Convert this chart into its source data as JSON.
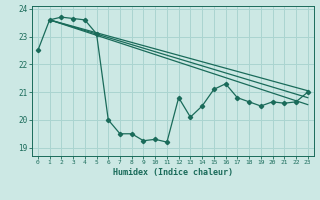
{
  "xlabel": "Humidex (Indice chaleur)",
  "background_color": "#cce8e4",
  "grid_color": "#aad4d0",
  "line_color": "#1a6b5a",
  "xlim": [
    -0.5,
    23.5
  ],
  "ylim": [
    18.7,
    24.1
  ],
  "yticks": [
    19,
    20,
    21,
    22,
    23,
    24
  ],
  "xticks": [
    0,
    1,
    2,
    3,
    4,
    5,
    6,
    7,
    8,
    9,
    10,
    11,
    12,
    13,
    14,
    15,
    16,
    17,
    18,
    19,
    20,
    21,
    22,
    23
  ],
  "main_line": {
    "x": [
      0,
      1,
      2,
      3,
      4,
      5,
      6,
      7,
      8,
      9,
      10,
      11,
      12,
      13,
      14,
      15,
      16,
      17,
      18,
      19,
      20,
      21,
      22,
      23
    ],
    "y": [
      22.5,
      23.6,
      23.7,
      23.65,
      23.6,
      23.1,
      20.0,
      19.5,
      19.5,
      19.25,
      19.3,
      19.2,
      20.8,
      20.1,
      20.5,
      21.1,
      21.3,
      20.8,
      20.65,
      20.5,
      20.65,
      20.6,
      20.65,
      21.0
    ]
  },
  "trend_lines": [
    {
      "x": [
        1,
        23
      ],
      "y": [
        23.6,
        21.05
      ]
    },
    {
      "x": [
        1,
        23
      ],
      "y": [
        23.6,
        20.55
      ]
    },
    {
      "x": [
        1,
        23
      ],
      "y": [
        23.6,
        20.8
      ]
    }
  ]
}
